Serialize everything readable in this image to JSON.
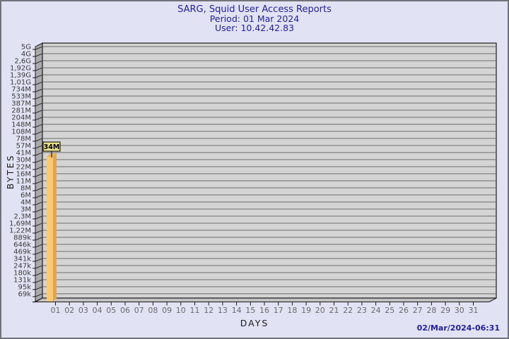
{
  "title": {
    "line1": "SARG, Squid User Access Reports",
    "line2": "Period: 01 Mar 2024",
    "line3": "User: 10.42.42.83"
  },
  "footer": {
    "generated_label": "02/Mar/2024-06:31"
  },
  "colors": {
    "background": "#e2e2f5",
    "page_border": "#73737a",
    "title_text": "#2121a1",
    "timestamp_text": "#2121a1",
    "plot_face": "#d4d4d4",
    "plot_wall": "#aaaaaa",
    "plot_floor": "#c2c2c2",
    "gridline": "#6e6e6e",
    "axis_line": "#1a1a1a",
    "y_tick_text": "#3a3a3a",
    "x_tick_text": "#6a6a6a",
    "bar_front": "#ffc875",
    "bar_side": "#dfa64e",
    "bar_top": "#eeb25c",
    "value_box_bg": "#e9df86",
    "value_box_border": "#000000",
    "value_box_text": "#000000"
  },
  "chart_data": {
    "type": "bar",
    "title": "SARG, Squid User Access Reports",
    "period": "01 Mar 2024",
    "user": "10.42.42.83",
    "xlabel": "DAYS",
    "ylabel": "BYTES",
    "y_scale": "log",
    "grid": true,
    "legend": "none",
    "x_categories": [
      "01",
      "02",
      "03",
      "04",
      "05",
      "06",
      "07",
      "08",
      "09",
      "10",
      "11",
      "12",
      "13",
      "14",
      "15",
      "16",
      "17",
      "18",
      "19",
      "20",
      "21",
      "22",
      "23",
      "24",
      "25",
      "26",
      "27",
      "28",
      "29",
      "30",
      "31"
    ],
    "y_tick_labels_top_to_bottom": [
      "5G",
      "4G",
      "2,6G",
      "1,92G",
      "1,39G",
      "1,01G",
      "734M",
      "533M",
      "387M",
      "281M",
      "204M",
      "148M",
      "108M",
      "78M",
      "57M",
      "41M",
      "30M",
      "22M",
      "16M",
      "11M",
      "8M",
      "6M",
      "4M",
      "3M",
      "2,3M",
      "1,69M",
      "1,22M",
      "889k",
      "646k",
      "469k",
      "341k",
      "247k",
      "180k",
      "131k",
      "95k",
      "69k"
    ],
    "bars": [
      {
        "category": "01",
        "value_label": "34M",
        "value_bytes": 34000000
      }
    ]
  }
}
